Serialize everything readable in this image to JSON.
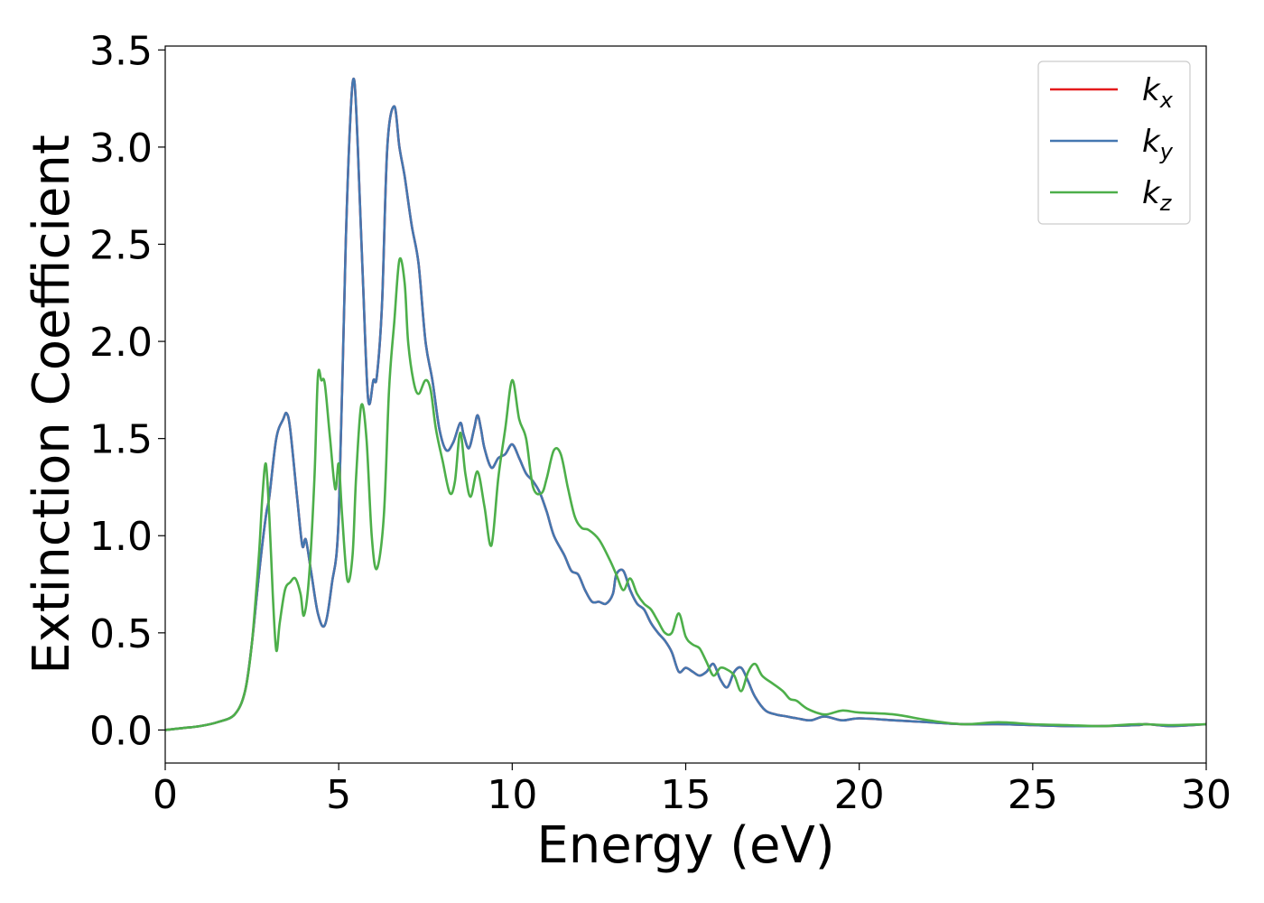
{
  "chart_data": {
    "type": "line",
    "title": "",
    "xlabel": "Energy (eV)",
    "ylabel": "Extinction Coefficient",
    "xlim": [
      0,
      30
    ],
    "ylim": [
      -0.17,
      3.52
    ],
    "xticks": [
      0,
      5,
      10,
      15,
      20,
      25,
      30
    ],
    "xtick_labels": [
      "0",
      "5",
      "10",
      "15",
      "20",
      "25",
      "30"
    ],
    "yticks": [
      0.0,
      0.5,
      1.0,
      1.5,
      2.0,
      2.5,
      3.0,
      3.5
    ],
    "ytick_labels": [
      "0.0",
      "0.5",
      "1.0",
      "1.5",
      "2.0",
      "2.5",
      "3.0",
      "3.5"
    ],
    "grid": false,
    "legend_position": "top-right",
    "series": [
      {
        "name": "k",
        "subscript": "x",
        "color": "#e41a1c",
        "x": [
          0,
          0.5,
          1,
          1.5,
          2,
          2.3,
          2.5,
          2.7,
          2.9,
          3.0,
          3.2,
          3.4,
          3.5,
          3.6,
          3.8,
          3.95,
          4.05,
          4.2,
          4.4,
          4.6,
          4.8,
          5.0,
          5.2,
          5.35,
          5.45,
          5.55,
          5.7,
          5.85,
          6.0,
          6.1,
          6.25,
          6.4,
          6.6,
          6.75,
          6.9,
          7.1,
          7.3,
          7.5,
          7.7,
          7.9,
          8.1,
          8.3,
          8.5,
          8.6,
          8.75,
          8.9,
          9.0,
          9.1,
          9.2,
          9.4,
          9.6,
          9.8,
          10.0,
          10.2,
          10.4,
          10.6,
          10.8,
          11.0,
          11.2,
          11.5,
          11.7,
          11.9,
          12.1,
          12.3,
          12.5,
          12.7,
          12.9,
          13.0,
          13.2,
          13.4,
          13.6,
          13.8,
          14.0,
          14.2,
          14.4,
          14.6,
          14.8,
          15.0,
          15.2,
          15.4,
          15.6,
          15.8,
          16.0,
          16.2,
          16.4,
          16.6,
          16.8,
          17.0,
          17.3,
          17.6,
          17.9,
          18.2,
          18.6,
          19.0,
          19.5,
          20.0,
          21.0,
          22.0,
          23.0,
          24.0,
          25.0,
          26.0,
          27.0,
          28.0,
          28.3,
          29.0,
          30.0
        ],
        "y": [
          0.0,
          0.01,
          0.02,
          0.04,
          0.08,
          0.2,
          0.45,
          0.8,
          1.1,
          1.2,
          1.5,
          1.6,
          1.63,
          1.55,
          1.2,
          0.95,
          0.98,
          0.82,
          0.6,
          0.54,
          0.75,
          1.1,
          2.5,
          3.2,
          3.34,
          3.0,
          2.3,
          1.7,
          1.8,
          1.82,
          2.2,
          3.0,
          3.21,
          3.0,
          2.85,
          2.6,
          2.4,
          2.0,
          1.8,
          1.55,
          1.44,
          1.48,
          1.58,
          1.52,
          1.45,
          1.55,
          1.62,
          1.55,
          1.45,
          1.35,
          1.4,
          1.42,
          1.47,
          1.4,
          1.32,
          1.28,
          1.22,
          1.12,
          1.0,
          0.9,
          0.82,
          0.8,
          0.72,
          0.66,
          0.66,
          0.65,
          0.7,
          0.8,
          0.82,
          0.72,
          0.65,
          0.62,
          0.55,
          0.5,
          0.46,
          0.4,
          0.3,
          0.32,
          0.3,
          0.28,
          0.3,
          0.34,
          0.26,
          0.22,
          0.3,
          0.32,
          0.25,
          0.17,
          0.1,
          0.08,
          0.07,
          0.06,
          0.05,
          0.07,
          0.05,
          0.06,
          0.05,
          0.04,
          0.03,
          0.03,
          0.025,
          0.02,
          0.02,
          0.025,
          0.03,
          0.02,
          0.03
        ]
      },
      {
        "name": "k",
        "subscript": "y",
        "color": "#4477b0",
        "x": [
          0,
          0.5,
          1,
          1.5,
          2,
          2.3,
          2.5,
          2.7,
          2.9,
          3.0,
          3.2,
          3.4,
          3.5,
          3.6,
          3.8,
          3.95,
          4.05,
          4.2,
          4.4,
          4.6,
          4.8,
          5.0,
          5.2,
          5.35,
          5.45,
          5.55,
          5.7,
          5.85,
          6.0,
          6.1,
          6.25,
          6.4,
          6.6,
          6.75,
          6.9,
          7.1,
          7.3,
          7.5,
          7.7,
          7.9,
          8.1,
          8.3,
          8.5,
          8.6,
          8.75,
          8.9,
          9.0,
          9.1,
          9.2,
          9.4,
          9.6,
          9.8,
          10.0,
          10.2,
          10.4,
          10.6,
          10.8,
          11.0,
          11.2,
          11.5,
          11.7,
          11.9,
          12.1,
          12.3,
          12.5,
          12.7,
          12.9,
          13.0,
          13.2,
          13.4,
          13.6,
          13.8,
          14.0,
          14.2,
          14.4,
          14.6,
          14.8,
          15.0,
          15.2,
          15.4,
          15.6,
          15.8,
          16.0,
          16.2,
          16.4,
          16.6,
          16.8,
          17.0,
          17.3,
          17.6,
          17.9,
          18.2,
          18.6,
          19.0,
          19.5,
          20.0,
          21.0,
          22.0,
          23.0,
          24.0,
          25.0,
          26.0,
          27.0,
          28.0,
          28.3,
          29.0,
          30.0
        ],
        "y": [
          0.0,
          0.01,
          0.02,
          0.04,
          0.08,
          0.2,
          0.45,
          0.8,
          1.1,
          1.2,
          1.5,
          1.6,
          1.63,
          1.55,
          1.2,
          0.95,
          0.98,
          0.82,
          0.6,
          0.54,
          0.75,
          1.1,
          2.5,
          3.2,
          3.34,
          3.0,
          2.3,
          1.7,
          1.8,
          1.82,
          2.2,
          3.0,
          3.21,
          3.0,
          2.85,
          2.6,
          2.4,
          2.0,
          1.8,
          1.55,
          1.44,
          1.48,
          1.58,
          1.52,
          1.45,
          1.55,
          1.62,
          1.55,
          1.45,
          1.35,
          1.4,
          1.42,
          1.47,
          1.4,
          1.32,
          1.28,
          1.22,
          1.12,
          1.0,
          0.9,
          0.82,
          0.8,
          0.72,
          0.66,
          0.66,
          0.65,
          0.7,
          0.8,
          0.82,
          0.72,
          0.65,
          0.62,
          0.55,
          0.5,
          0.46,
          0.4,
          0.3,
          0.32,
          0.3,
          0.28,
          0.3,
          0.34,
          0.26,
          0.22,
          0.3,
          0.32,
          0.25,
          0.17,
          0.1,
          0.08,
          0.07,
          0.06,
          0.05,
          0.07,
          0.05,
          0.06,
          0.05,
          0.04,
          0.03,
          0.03,
          0.025,
          0.02,
          0.02,
          0.025,
          0.03,
          0.02,
          0.03
        ]
      },
      {
        "name": "k",
        "subscript": "z",
        "color": "#4daf4a",
        "x": [
          0,
          0.5,
          1,
          1.5,
          2,
          2.3,
          2.5,
          2.7,
          2.8,
          2.9,
          3.0,
          3.1,
          3.2,
          3.3,
          3.45,
          3.6,
          3.75,
          3.9,
          4.0,
          4.15,
          4.3,
          4.4,
          4.5,
          4.6,
          4.75,
          4.9,
          5.0,
          5.1,
          5.25,
          5.4,
          5.5,
          5.65,
          5.8,
          5.95,
          6.1,
          6.3,
          6.45,
          6.6,
          6.75,
          6.9,
          7.0,
          7.15,
          7.3,
          7.5,
          7.65,
          7.8,
          8.0,
          8.2,
          8.35,
          8.5,
          8.65,
          8.8,
          9.0,
          9.2,
          9.4,
          9.6,
          9.8,
          10.0,
          10.2,
          10.4,
          10.6,
          10.85,
          11.0,
          11.2,
          11.4,
          11.6,
          11.8,
          12.0,
          12.2,
          12.5,
          12.8,
          13.0,
          13.2,
          13.4,
          13.6,
          13.8,
          14.0,
          14.2,
          14.4,
          14.6,
          14.8,
          15.0,
          15.2,
          15.4,
          15.6,
          15.8,
          16.0,
          16.2,
          16.4,
          16.6,
          16.8,
          17.0,
          17.2,
          17.5,
          17.8,
          18.0,
          18.2,
          18.5,
          19.0,
          19.5,
          20.0,
          21.0,
          22.0,
          23.0,
          24.0,
          25.0,
          26.0,
          27.0,
          28.0,
          29.0,
          30.0
        ],
        "y": [
          0.0,
          0.01,
          0.02,
          0.04,
          0.08,
          0.2,
          0.45,
          0.9,
          1.2,
          1.37,
          1.1,
          0.7,
          0.41,
          0.55,
          0.72,
          0.76,
          0.78,
          0.7,
          0.59,
          0.8,
          1.3,
          1.82,
          1.8,
          1.78,
          1.5,
          1.24,
          1.37,
          1.1,
          0.77,
          0.9,
          1.3,
          1.67,
          1.5,
          1.0,
          0.83,
          1.1,
          1.75,
          2.1,
          2.42,
          2.3,
          2.0,
          1.8,
          1.73,
          1.8,
          1.75,
          1.55,
          1.38,
          1.22,
          1.28,
          1.53,
          1.32,
          1.2,
          1.33,
          1.15,
          0.95,
          1.3,
          1.55,
          1.8,
          1.6,
          1.5,
          1.25,
          1.22,
          1.3,
          1.44,
          1.42,
          1.25,
          1.1,
          1.04,
          1.03,
          0.98,
          0.88,
          0.8,
          0.72,
          0.78,
          0.7,
          0.65,
          0.62,
          0.56,
          0.5,
          0.5,
          0.6,
          0.48,
          0.44,
          0.42,
          0.35,
          0.28,
          0.32,
          0.31,
          0.28,
          0.2,
          0.3,
          0.34,
          0.28,
          0.24,
          0.2,
          0.16,
          0.15,
          0.11,
          0.08,
          0.1,
          0.09,
          0.08,
          0.05,
          0.03,
          0.04,
          0.03,
          0.025,
          0.02,
          0.03,
          0.025,
          0.03
        ]
      }
    ]
  }
}
